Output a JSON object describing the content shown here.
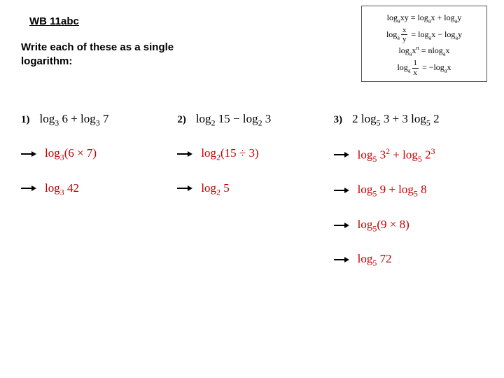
{
  "title": "WB 11abc",
  "instruction": "Write each of these as a single logarithm:",
  "rules": {
    "r1": "log<sub>a</sub>xy = log<sub>a</sub>x + log<sub>a</sub>y",
    "r2": "log<sub>a</sub><span class='frac'><span class='n'>x</span><span class='d'>y</span></span> = log<sub>a</sub>x − log<sub>a</sub>y",
    "r3": "log<sub>a</sub>x<sup>n</sup> = nlog<sub>a</sub>x",
    "r4": "log<sub>a</sub><span class='frac'><span class='n'>1</span><span class='d'>x</span></span> = −log<sub>a</sub>x"
  },
  "problems": [
    {
      "num": "1)",
      "prompt": "log<sub>3</sub> 6 + log<sub>3</sub> 7",
      "steps": [
        "log<sub>3</sub>(6 × 7)",
        "log<sub>3</sub> 42"
      ]
    },
    {
      "num": "2)",
      "prompt": "log<sub>2</sub> 15 − log<sub>2</sub> 3",
      "steps": [
        "log<sub>2</sub>(15 ÷ 3)",
        "log<sub>2</sub> 5"
      ]
    },
    {
      "num": "3)",
      "prompt": "2 log<sub>5</sub> 3 + 3 log<sub>5</sub> 2",
      "steps": [
        "log<sub>5</sub> 3<sup>2</sup> + log<sub>5</sub> 2<sup>3</sup>",
        "log<sub>5</sub> 9 + log<sub>5</sub> 8",
        "log<sub>5</sub>(9 × 8)",
        "log<sub>5</sub> 72"
      ]
    }
  ],
  "colors": {
    "answer": "#c00000",
    "text": "#000000"
  }
}
